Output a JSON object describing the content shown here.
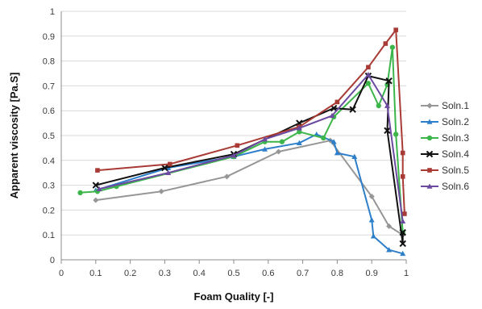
{
  "chart_data": {
    "type": "line",
    "title": "",
    "xlabel": "Foam Quality [-]",
    "ylabel": "Apparent viscosity [Pa.S]",
    "xlim": [
      0,
      1
    ],
    "ylim": [
      0,
      1
    ],
    "xticks": [
      "0",
      "0.1",
      "0.2",
      "0.3",
      "0.4",
      "0.5",
      "0.6",
      "0.7",
      "0.8",
      "0.9",
      "1"
    ],
    "yticks": [
      "0",
      "0.1",
      "0.2",
      "0.3",
      "0.4",
      "0.5",
      "0.6",
      "0.7",
      "0.8",
      "0.9",
      "1"
    ],
    "grid": true,
    "legend_position": "right",
    "series": [
      {
        "name": "Soln.1",
        "color": "#969696",
        "marker": "diamond",
        "x": [
          0.1,
          0.29,
          0.48,
          0.63,
          0.78,
          0.9,
          0.95,
          0.99
        ],
        "y": [
          0.24,
          0.275,
          0.335,
          0.435,
          0.48,
          0.255,
          0.135,
          0.1
        ]
      },
      {
        "name": "Soln.2",
        "color": "#2e7fc9",
        "marker": "triangle",
        "x": [
          0.1,
          0.31,
          0.5,
          0.59,
          0.69,
          0.74,
          0.79,
          0.8,
          0.85,
          0.9,
          0.905,
          0.95,
          0.99
        ],
        "y": [
          0.28,
          0.37,
          0.415,
          0.445,
          0.47,
          0.505,
          0.475,
          0.43,
          0.415,
          0.16,
          0.095,
          0.04,
          0.025
        ]
      },
      {
        "name": "Soln.3",
        "color": "#3cb54a",
        "marker": "circle",
        "x": [
          0.055,
          0.105,
          0.16,
          0.5,
          0.59,
          0.64,
          0.69,
          0.76,
          0.79,
          0.89,
          0.92,
          0.945,
          0.96,
          0.97,
          0.99
        ],
        "y": [
          0.27,
          0.275,
          0.295,
          0.415,
          0.475,
          0.475,
          0.515,
          0.49,
          0.575,
          0.71,
          0.62,
          0.705,
          0.855,
          0.505,
          0.11
        ]
      },
      {
        "name": "Soln.4",
        "color": "#111111",
        "marker": "x",
        "x": [
          0.1,
          0.3,
          0.5,
          0.69,
          0.79,
          0.845,
          0.89,
          0.95,
          0.945,
          0.99,
          0.99
        ],
        "y": [
          0.3,
          0.37,
          0.425,
          0.55,
          0.61,
          0.605,
          0.74,
          0.72,
          0.52,
          0.065,
          0.11
        ]
      },
      {
        "name": "Soln.5",
        "color": "#a83b35",
        "marker": "square",
        "x": [
          0.105,
          0.315,
          0.51,
          0.69,
          0.8,
          0.89,
          0.94,
          0.97,
          0.99,
          0.99,
          0.995
        ],
        "y": [
          0.36,
          0.385,
          0.46,
          0.535,
          0.635,
          0.775,
          0.87,
          0.925,
          0.43,
          0.335,
          0.185
        ]
      },
      {
        "name": "Soln.6",
        "color": "#6b4aa0",
        "marker": "triangle",
        "x": [
          0.11,
          0.31,
          0.5,
          0.59,
          0.69,
          0.785,
          0.89,
          0.945,
          0.99
        ],
        "y": [
          0.285,
          0.35,
          0.42,
          0.485,
          0.53,
          0.58,
          0.745,
          0.62,
          0.155
        ]
      }
    ]
  }
}
